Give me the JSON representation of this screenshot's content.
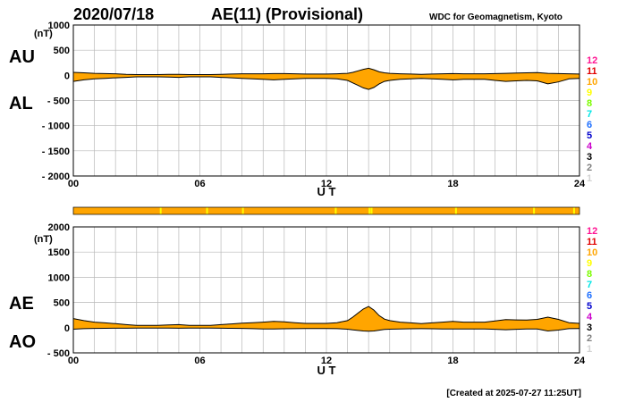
{
  "header": {
    "date": "2020/07/18",
    "title": "AE(11) (Provisional)",
    "source": "WDC for Geomagnetism, Kyoto"
  },
  "footer": {
    "created": "[Created at 2025-07-27 11:25UT]"
  },
  "colors": {
    "fill": "#FFA500",
    "line": "#000000",
    "grid": "#b8b8b8",
    "quality_bar": "#FFA500",
    "quality_bar_dropout": "#FFFF00"
  },
  "legend_levels": [
    {
      "label": "12",
      "color": "#FF1493"
    },
    {
      "label": "11",
      "color": "#E00000"
    },
    {
      "label": "10",
      "color": "#FFA500"
    },
    {
      "label": "9",
      "color": "#FFFF00"
    },
    {
      "label": "8",
      "color": "#7CFC00"
    },
    {
      "label": "7",
      "color": "#00E5E5"
    },
    {
      "label": "6",
      "color": "#1E6FFF"
    },
    {
      "label": "5",
      "color": "#0000CD"
    },
    {
      "label": "4",
      "color": "#CC00CC"
    },
    {
      "label": "3",
      "color": "#000000"
    },
    {
      "label": "2",
      "color": "#808080"
    },
    {
      "label": "1",
      "color": "#D3D3D3"
    }
  ],
  "quality_bar": {
    "dropouts_ut_hours": [
      4.1,
      6.3,
      8.0,
      12.4,
      14.0,
      14.1,
      18.1,
      21.8,
      23.7
    ]
  },
  "chart_data": [
    {
      "type": "area",
      "series_labels": [
        "AU",
        "AL"
      ],
      "xlabel": "U T",
      "ylabel": "(nT)",
      "xlim": [
        0,
        24
      ],
      "ylim": [
        -2000,
        1000
      ],
      "xticks": [
        "00",
        "06",
        "12",
        "18",
        "24"
      ],
      "yticks": [
        "1000",
        "500",
        "0",
        "- 500",
        "- 1000",
        "- 1500",
        "- 2000"
      ],
      "grid": true,
      "x": [
        0,
        0.5,
        1,
        1.5,
        2,
        2.5,
        3,
        3.5,
        4,
        4.5,
        5,
        5.5,
        6,
        6.5,
        7,
        7.5,
        8,
        8.5,
        9,
        9.5,
        10,
        10.5,
        11,
        11.5,
        12,
        12.5,
        13,
        13.25,
        13.5,
        13.75,
        14,
        14.25,
        14.5,
        14.75,
        15,
        15.5,
        16,
        16.5,
        17,
        17.5,
        18,
        18.5,
        19,
        19.5,
        20,
        20.5,
        21,
        21.5,
        22,
        22.5,
        23,
        23.5,
        24
      ],
      "series": [
        {
          "name": "AU",
          "values": [
            60,
            50,
            40,
            35,
            30,
            20,
            15,
            15,
            15,
            20,
            20,
            15,
            15,
            15,
            20,
            25,
            30,
            30,
            30,
            35,
            35,
            30,
            25,
            25,
            25,
            30,
            40,
            60,
            90,
            120,
            140,
            110,
            70,
            50,
            40,
            30,
            25,
            20,
            25,
            30,
            35,
            30,
            30,
            30,
            35,
            40,
            45,
            50,
            55,
            40,
            35,
            30,
            25
          ]
        },
        {
          "name": "AL",
          "values": [
            -120,
            -90,
            -70,
            -60,
            -50,
            -40,
            -30,
            -30,
            -30,
            -35,
            -40,
            -30,
            -30,
            -30,
            -40,
            -50,
            -60,
            -70,
            -80,
            -90,
            -80,
            -70,
            -60,
            -60,
            -60,
            -70,
            -100,
            -150,
            -200,
            -250,
            -280,
            -240,
            -170,
            -120,
            -100,
            -80,
            -70,
            -60,
            -70,
            -80,
            -90,
            -80,
            -80,
            -80,
            -100,
            -120,
            -110,
            -100,
            -110,
            -170,
            -130,
            -70,
            -60
          ]
        }
      ]
    },
    {
      "type": "area",
      "series_labels": [
        "AE",
        "AO"
      ],
      "xlabel": "U T",
      "ylabel": "(nT)",
      "xlim": [
        0,
        24
      ],
      "ylim": [
        -500,
        2000
      ],
      "xticks": [
        "00",
        "06",
        "12",
        "18",
        "24"
      ],
      "yticks": [
        "2000",
        "1500",
        "1000",
        "500",
        "0",
        "- 500"
      ],
      "grid": true,
      "x": [
        0,
        0.5,
        1,
        1.5,
        2,
        2.5,
        3,
        3.5,
        4,
        4.5,
        5,
        5.5,
        6,
        6.5,
        7,
        7.5,
        8,
        8.5,
        9,
        9.5,
        10,
        10.5,
        11,
        11.5,
        12,
        12.5,
        13,
        13.25,
        13.5,
        13.75,
        14,
        14.25,
        14.5,
        14.75,
        15,
        15.5,
        16,
        16.5,
        17,
        17.5,
        18,
        18.5,
        19,
        19.5,
        20,
        20.5,
        21,
        21.5,
        22,
        22.5,
        23,
        23.5,
        24
      ],
      "series": [
        {
          "name": "AE",
          "values": [
            180,
            140,
            110,
            95,
            80,
            60,
            45,
            45,
            45,
            55,
            60,
            45,
            45,
            45,
            60,
            75,
            90,
            100,
            110,
            125,
            115,
            100,
            85,
            85,
            85,
            100,
            140,
            210,
            290,
            370,
            420,
            350,
            240,
            170,
            140,
            110,
            95,
            80,
            95,
            110,
            125,
            110,
            110,
            110,
            135,
            160,
            155,
            150,
            165,
            210,
            165,
            100,
            85
          ]
        },
        {
          "name": "AO",
          "values": [
            -30,
            -20,
            -15,
            -12,
            -10,
            -10,
            -8,
            -8,
            -8,
            -8,
            -10,
            -8,
            -8,
            -8,
            -10,
            -12,
            -15,
            -20,
            -25,
            -27,
            -22,
            -20,
            -18,
            -18,
            -18,
            -20,
            -30,
            -45,
            -55,
            -65,
            -70,
            -65,
            -50,
            -35,
            -30,
            -25,
            -22,
            -20,
            -22,
            -25,
            -27,
            -25,
            -25,
            -25,
            -32,
            -40,
            -32,
            -25,
            -27,
            -65,
            -47,
            -20,
            -17
          ]
        }
      ]
    }
  ]
}
